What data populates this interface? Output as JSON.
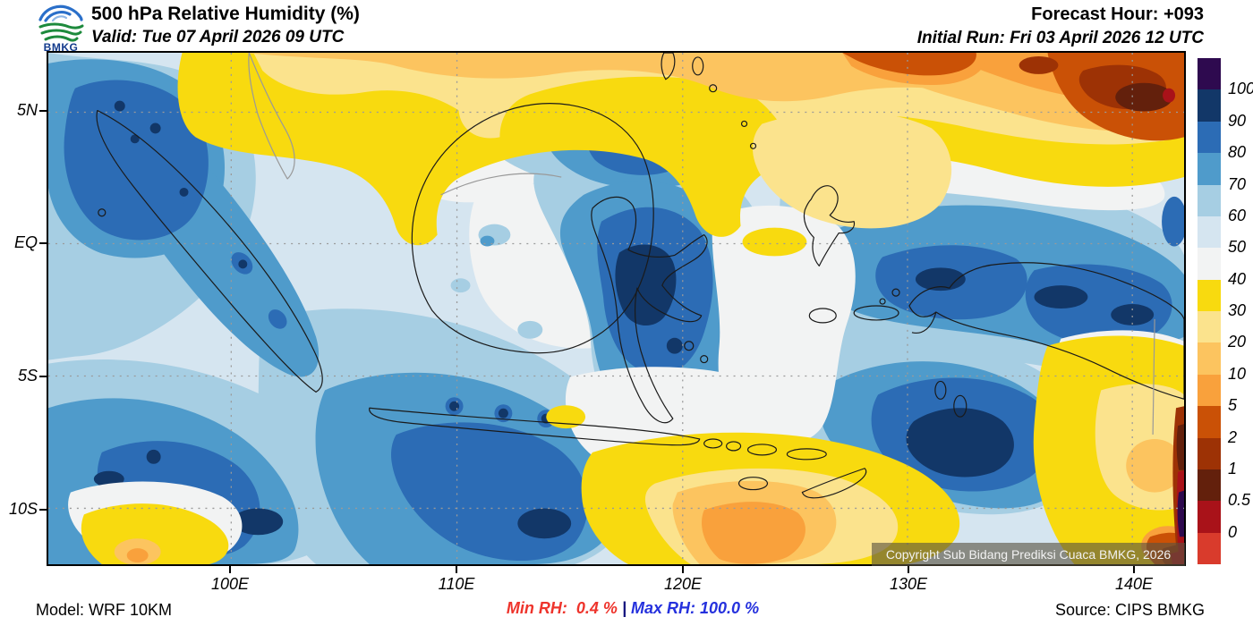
{
  "header": {
    "logo_text": "BMKG",
    "title": "500 hPa Relative Humidity (%)",
    "valid": "Valid: Tue 07 April 2026 09 UTC",
    "forecast_hour": "Forecast Hour: +093",
    "initial_run": "Initial Run: Fri 03 April 2026 12 UTC"
  },
  "axes": {
    "y": [
      "5N",
      "EQ",
      "5S",
      "10S"
    ],
    "x": [
      "100E",
      "110E",
      "120E",
      "130E",
      "140E"
    ]
  },
  "colorbar": {
    "ticks": [
      "100",
      "90",
      "80",
      "70",
      "60",
      "50",
      "40",
      "30",
      "20",
      "10",
      "5",
      "2",
      "1",
      "0.5",
      "0"
    ],
    "segments": [
      {
        "range": ">100",
        "color": "#2e0a4f"
      },
      {
        "range": "90-100",
        "color": "#123768"
      },
      {
        "range": "80-90",
        "color": "#2c6cb5"
      },
      {
        "range": "70-80",
        "color": "#4f9bcb"
      },
      {
        "range": "60-70",
        "color": "#a6cee3"
      },
      {
        "range": "50-60",
        "color": "#d5e5f0"
      },
      {
        "range": "40-50",
        "color": "#f2f3f3"
      },
      {
        "range": "30-40",
        "color": "#f8da0f"
      },
      {
        "range": "20-30",
        "color": "#fbe38d"
      },
      {
        "range": "10-20",
        "color": "#fcc45f"
      },
      {
        "range": "5-10",
        "color": "#f9a13c"
      },
      {
        "range": "2-5",
        "color": "#ca5106"
      },
      {
        "range": "1-2",
        "color": "#9d3205"
      },
      {
        "range": "0.5-1",
        "color": "#63200c"
      },
      {
        "range": "0-0.5",
        "color": "#a91219"
      },
      {
        "range": "<0",
        "color": "#d93b2c"
      }
    ]
  },
  "map": {
    "copyright": "Copyright Sub Bidang Prediksi Cuaca BMKG, 2026"
  },
  "footer": {
    "model": "Model: WRF 10KM",
    "min_rh": "Min RH:  0.4 %",
    "separator": "|",
    "max_rh": "Max RH: 100.0 %",
    "source": "Source: CIPS BMKG",
    "min_color": "#ee342c",
    "max_color": "#2531dd"
  },
  "chart_data": {
    "type": "heatmap",
    "title": "500 hPa Relative Humidity (%)",
    "variable": "Relative Humidity",
    "pressure_level": "500 hPa",
    "units": "%",
    "valid_time": "Tue 07 April 2026 09 UTC",
    "initial_run": "Fri 03 April 2026 12 UTC",
    "forecast_hour": "+093",
    "model": "WRF 10KM",
    "source": "CIPS BMKG",
    "min_value": 0.4,
    "max_value": 100.0,
    "x_ticks": [
      "100E",
      "110E",
      "120E",
      "130E",
      "140E"
    ],
    "y_ticks": [
      "5N",
      "EQ",
      "5S",
      "10S"
    ],
    "contour_levels_high_to_low": [
      100,
      90,
      80,
      70,
      60,
      50,
      40,
      30,
      20,
      10,
      5,
      2,
      1,
      0.5,
      0
    ],
    "palette_high_to_low": [
      "#2e0a4f",
      "#123768",
      "#2c6cb5",
      "#4f9bcb",
      "#a6cee3",
      "#d5e5f0",
      "#f2f3f3",
      "#f8da0f",
      "#fbe38d",
      "#fcc45f",
      "#f9a13c",
      "#ca5106",
      "#9d3205",
      "#63200c",
      "#a91219",
      "#d93b2c"
    ],
    "legend_position": "right",
    "grid": "dotted gridlines at labeled ticks",
    "notable_features": [
      "High RH 70-100% over Sumatra, Sulawesi, Banda Sea and Papua",
      "Moist cores >90% over central Sulawesi, Banda Sea and along Java",
      "Dry air <40% north of about 6N (South China Sea / Philippine Sea), driest <2% in far northeast corner",
      "Dry tongue 5-40% south of Timor and in far southeast corner"
    ]
  }
}
